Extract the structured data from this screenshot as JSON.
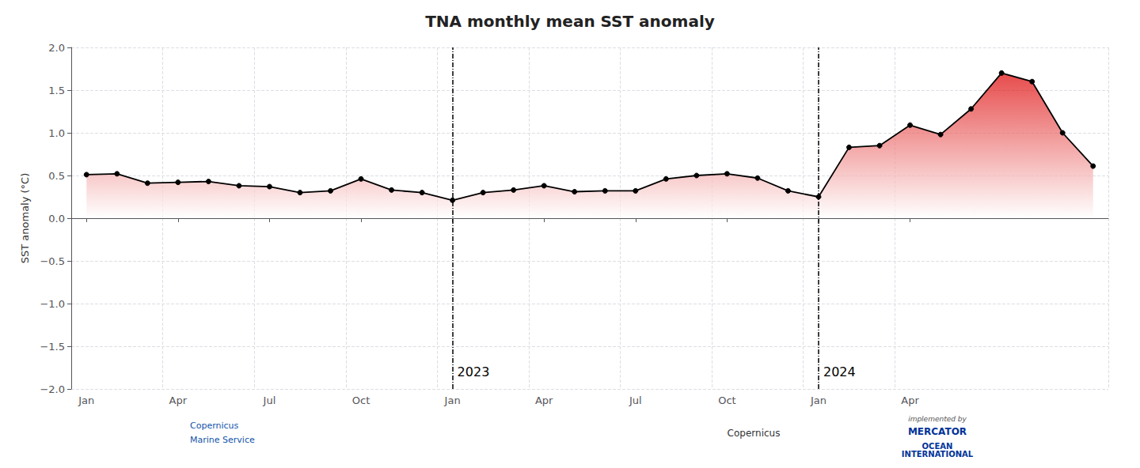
{
  "chart_data": {
    "type": "line",
    "title": "TNA monthly mean SST anomaly",
    "ylabel": "SST anomaly (°C)",
    "categories": [
      "Jan",
      null,
      null,
      "Apr",
      null,
      null,
      "Jul",
      null,
      null,
      "Oct",
      null,
      null,
      "Jan",
      null,
      null,
      "Apr",
      null,
      null,
      "Jul",
      null,
      null,
      "Oct",
      null,
      null,
      "Jan",
      null,
      null,
      "Apr",
      null,
      null,
      null,
      null,
      null,
      null
    ],
    "values": [
      0.51,
      0.52,
      0.41,
      0.42,
      0.43,
      0.38,
      0.37,
      0.3,
      0.32,
      0.46,
      0.33,
      0.3,
      0.21,
      0.3,
      0.33,
      0.38,
      0.31,
      0.32,
      0.32,
      0.46,
      0.5,
      0.52,
      0.47,
      0.32,
      0.25,
      0.83,
      0.85,
      1.09,
      0.98,
      1.28,
      1.7,
      1.6,
      1.0,
      0.61
    ],
    "color": "#000000",
    "marker": "circle",
    "ylim": [
      -2.0,
      2.0
    ],
    "yticks": [
      {
        "value": -2.0,
        "label": "−2.0"
      },
      {
        "value": -1.5,
        "label": "−1.5"
      },
      {
        "value": -1.0,
        "label": "−1.0"
      },
      {
        "value": -0.5,
        "label": "−0.5"
      },
      {
        "value": 0.0,
        "label": "0.0"
      },
      0.5,
      {
        "value": 1.0,
        "label": "1.0"
      },
      1.5,
      {
        "value": 2.0,
        "label": "2.0"
      }
    ],
    "grid": true,
    "annotations": [
      {
        "x": 12,
        "text": "2023"
      },
      {
        "x": 24,
        "text": "2024"
      },
      {
        "text": "Copernicus"
      },
      {
        "text": "Marine Service"
      },
      {
        "text": "Copernicus"
      },
      {
        "text": "implemented by"
      },
      {
        "text": "MERCATOR"
      },
      {
        "text": "OCEAN\nINTERNATIONAL"
      }
    ]
  }
}
